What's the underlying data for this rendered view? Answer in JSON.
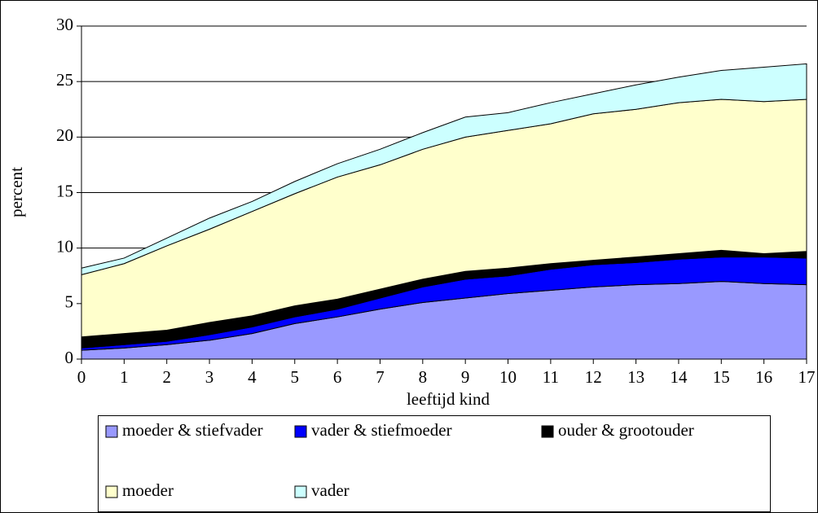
{
  "chart_data": {
    "type": "area",
    "stacked": true,
    "x_label": "leeftijd kind",
    "y_label": "percent",
    "x": [
      0,
      1,
      2,
      3,
      4,
      5,
      6,
      7,
      8,
      9,
      10,
      11,
      12,
      13,
      14,
      15,
      16,
      17
    ],
    "xlim": [
      0,
      17
    ],
    "ylim": [
      0,
      30
    ],
    "yticks": [
      0,
      5,
      10,
      15,
      20,
      25,
      30
    ],
    "grid": true,
    "series": [
      {
        "name": "moeder & stiefvader",
        "color": "#9999ff",
        "values": [
          0.8,
          1.0,
          1.3,
          1.7,
          2.3,
          3.2,
          3.8,
          4.5,
          5.1,
          5.5,
          5.9,
          6.2,
          6.5,
          6.7,
          6.8,
          7.0,
          6.8,
          6.7
        ]
      },
      {
        "name": "vader & stiefmoeder",
        "color": "#0000ff",
        "values": [
          0.2,
          0.3,
          0.3,
          0.5,
          0.6,
          0.6,
          0.7,
          1.0,
          1.4,
          1.7,
          1.6,
          1.9,
          2.0,
          2.0,
          2.2,
          2.2,
          2.4,
          2.4
        ]
      },
      {
        "name": "ouder & grootouder",
        "color": "#000000",
        "values": [
          1.0,
          1.0,
          1.0,
          1.1,
          1.0,
          1.0,
          0.9,
          0.8,
          0.7,
          0.7,
          0.7,
          0.5,
          0.4,
          0.5,
          0.5,
          0.6,
          0.3,
          0.6
        ]
      },
      {
        "name": "moeder",
        "color": "#ffffcc",
        "values": [
          5.6,
          6.3,
          7.6,
          8.4,
          9.4,
          10.1,
          11.0,
          11.2,
          11.7,
          12.1,
          12.4,
          12.6,
          13.2,
          13.3,
          13.6,
          13.6,
          13.7,
          13.7
        ]
      },
      {
        "name": "vader",
        "color": "#ccffff",
        "values": [
          0.6,
          0.5,
          0.7,
          1.0,
          0.9,
          1.1,
          1.2,
          1.4,
          1.5,
          1.8,
          1.6,
          1.9,
          1.8,
          2.2,
          2.3,
          2.6,
          3.1,
          3.2
        ]
      }
    ]
  }
}
